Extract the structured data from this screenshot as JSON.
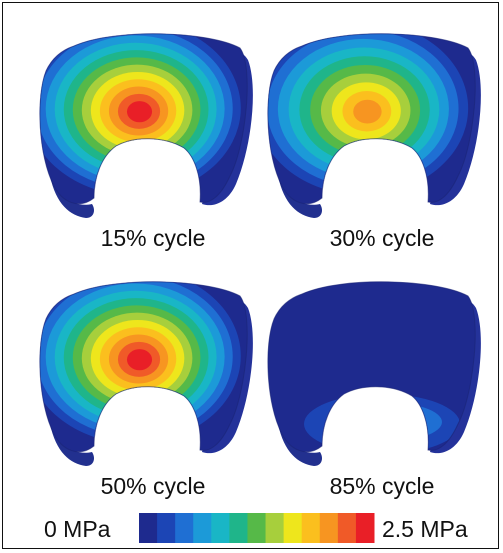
{
  "figure": {
    "panels": [
      {
        "caption": "15% cycle",
        "peak_level": 12,
        "pattern": "centered"
      },
      {
        "caption": "30% cycle",
        "peak_level": 10,
        "pattern": "centered"
      },
      {
        "caption": "50% cycle",
        "peak_level": 12,
        "pattern": "centered"
      },
      {
        "caption": "85% cycle",
        "peak_level": 3,
        "pattern": "posterior"
      }
    ],
    "legend": {
      "min_label": "0 MPa",
      "max_label": "2.5 MPa",
      "colors": [
        "#1e2a8e",
        "#1c45b5",
        "#1f6fd3",
        "#1c9ad8",
        "#19b6c6",
        "#1fb58a",
        "#56b948",
        "#a7cf3c",
        "#eee61c",
        "#fbbf1e",
        "#f79521",
        "#f05a28",
        "#e91f27"
      ]
    }
  }
}
